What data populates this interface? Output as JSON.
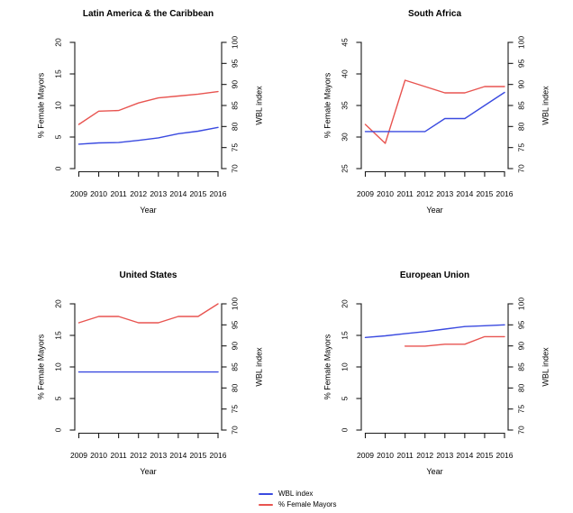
{
  "figure": {
    "background": "#ffffff"
  },
  "legend": {
    "entries": [
      {
        "label": "WBL index",
        "color": "#3a4ae0"
      },
      {
        "label": "% Female Mayors",
        "color": "#e85450"
      }
    ]
  },
  "chart_data": [
    {
      "type": "line",
      "title": "Latin America & the Caribbean",
      "xlabel": "Year",
      "ylabel_left": "% Female Mayors",
      "ylabel_right": "WBL index",
      "x": [
        2009,
        2010,
        2011,
        2012,
        2013,
        2014,
        2015,
        2016
      ],
      "left_axis": {
        "min": 0,
        "max": 20,
        "ticks": [
          0,
          5,
          10,
          15,
          20
        ]
      },
      "right_axis": {
        "min": 70,
        "max": 100,
        "ticks": [
          70,
          75,
          80,
          85,
          90,
          95,
          100
        ]
      },
      "grid": false,
      "series": [
        {
          "name": "% Female Mayors",
          "axis": "left",
          "color": "#e85450",
          "values": [
            7.0,
            9.1,
            9.2,
            10.4,
            11.2,
            11.5,
            11.8,
            12.2
          ]
        },
        {
          "name": "WBL index",
          "axis": "right",
          "color": "#3a4ae0",
          "values": [
            75.8,
            76.1,
            76.2,
            76.7,
            77.3,
            78.3,
            78.9,
            79.8
          ]
        }
      ]
    },
    {
      "type": "line",
      "title": "South Africa",
      "xlabel": "Year",
      "ylabel_left": "% Female Mayors",
      "ylabel_right": "WBL index",
      "x": [
        2009,
        2010,
        2011,
        2012,
        2013,
        2014,
        2015,
        2016
      ],
      "left_axis": {
        "min": 25,
        "max": 45,
        "ticks": [
          25,
          30,
          35,
          40,
          45
        ]
      },
      "right_axis": {
        "min": 70,
        "max": 100,
        "ticks": [
          70,
          75,
          80,
          85,
          90,
          95,
          100
        ]
      },
      "grid": false,
      "series": [
        {
          "name": "% Female Mayors",
          "axis": "left",
          "color": "#e85450",
          "values": [
            32,
            29,
            39,
            38,
            37,
            37,
            38,
            38
          ]
        },
        {
          "name": "WBL index",
          "axis": "right",
          "color": "#3a4ae0",
          "values": [
            78.8,
            78.8,
            78.8,
            78.8,
            81.9,
            81.9,
            85.0,
            88.1
          ]
        }
      ]
    },
    {
      "type": "line",
      "title": "United States",
      "xlabel": "Year",
      "ylabel_left": "% Female Mayors",
      "ylabel_right": "WBL index",
      "x": [
        2009,
        2010,
        2011,
        2012,
        2013,
        2014,
        2015,
        2016
      ],
      "left_axis": {
        "min": 0,
        "max": 20,
        "ticks": [
          0,
          5,
          10,
          15,
          20
        ]
      },
      "right_axis": {
        "min": 70,
        "max": 100,
        "ticks": [
          70,
          75,
          80,
          85,
          90,
          95,
          100
        ]
      },
      "grid": false,
      "series": [
        {
          "name": "% Female Mayors",
          "axis": "left",
          "color": "#e85450",
          "values": [
            17,
            18,
            18,
            17,
            17,
            18,
            18,
            20
          ]
        },
        {
          "name": "WBL index",
          "axis": "right",
          "color": "#3a4ae0",
          "values": [
            83.8,
            83.8,
            83.8,
            83.8,
            83.8,
            83.8,
            83.8,
            83.8
          ]
        }
      ]
    },
    {
      "type": "line",
      "title": "European Union",
      "xlabel": "Year",
      "ylabel_left": "% Female Mayors",
      "ylabel_right": "WBL index",
      "x": [
        2009,
        2010,
        2011,
        2012,
        2013,
        2014,
        2015,
        2016
      ],
      "left_axis": {
        "min": 0,
        "max": 20,
        "ticks": [
          0,
          5,
          10,
          15,
          20
        ]
      },
      "right_axis": {
        "min": 70,
        "max": 100,
        "ticks": [
          70,
          75,
          80,
          85,
          90,
          95,
          100
        ]
      },
      "grid": false,
      "series": [
        {
          "name": "% Female Mayors",
          "axis": "left",
          "color": "#e85450",
          "values": [
            null,
            null,
            13.3,
            13.3,
            13.6,
            13.6,
            14.8,
            14.8
          ]
        },
        {
          "name": "WBL index",
          "axis": "right",
          "color": "#3a4ae0",
          "values": [
            92.0,
            92.4,
            92.9,
            93.4,
            94.0,
            94.6,
            94.8,
            95.0
          ]
        }
      ]
    }
  ]
}
